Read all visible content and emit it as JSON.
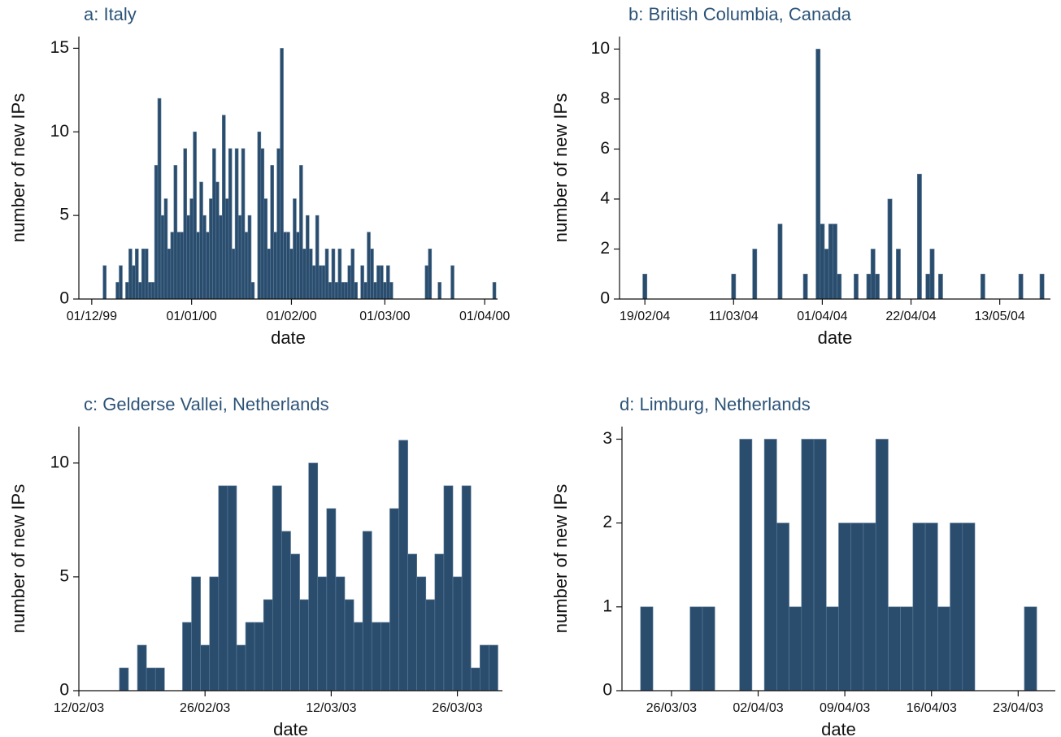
{
  "chart_data": [
    {
      "type": "bar",
      "title": "a: Italy",
      "xlabel": "date",
      "ylabel": "number of new IPs",
      "color": "#2a4d6e",
      "x": [
        "05/12/99",
        "09/12/99",
        "10/12/99",
        "12/12/99",
        "13/12/99",
        "14/12/99",
        "15/12/99",
        "16/12/99",
        "17/12/99",
        "18/12/99",
        "19/12/99",
        "20/12/99",
        "21/12/99",
        "22/12/99",
        "23/12/99",
        "24/12/99",
        "25/12/99",
        "26/12/99",
        "27/12/99",
        "28/12/99",
        "29/12/99",
        "30/12/99",
        "31/12/99",
        "01/01/00",
        "02/01/00",
        "03/01/00",
        "04/01/00",
        "05/01/00",
        "06/01/00",
        "07/01/00",
        "08/01/00",
        "09/01/00",
        "10/01/00",
        "11/01/00",
        "12/01/00",
        "13/01/00",
        "14/01/00",
        "15/01/00",
        "16/01/00",
        "17/01/00",
        "18/01/00",
        "19/01/00",
        "20/01/00",
        "22/01/00",
        "23/01/00",
        "24/01/00",
        "25/01/00",
        "26/01/00",
        "27/01/00",
        "28/01/00",
        "29/01/00",
        "30/01/00",
        "31/01/00",
        "01/02/00",
        "02/02/00",
        "03/02/00",
        "04/02/00",
        "05/02/00",
        "06/02/00",
        "07/02/00",
        "08/02/00",
        "09/02/00",
        "10/02/00",
        "11/02/00",
        "12/02/00",
        "13/02/00",
        "14/02/00",
        "15/02/00",
        "16/02/00",
        "17/02/00",
        "18/02/00",
        "19/02/00",
        "20/02/00",
        "21/02/00",
        "23/02/00",
        "24/02/00",
        "25/02/00",
        "26/02/00",
        "27/02/00",
        "28/02/00",
        "29/02/00",
        "01/03/00",
        "02/03/00",
        "03/03/00",
        "14/03/00",
        "15/03/00",
        "18/03/00",
        "22/03/00",
        "04/04/00"
      ],
      "values": [
        2,
        1,
        2,
        1,
        3,
        2,
        3,
        1,
        3,
        3,
        1,
        1,
        8,
        12,
        5,
        6,
        3,
        4,
        8,
        4,
        4,
        9,
        5,
        6,
        10,
        4,
        7,
        5,
        4,
        6,
        9,
        7,
        5,
        11,
        6,
        9,
        3,
        9,
        5,
        9,
        4,
        5,
        1,
        10,
        9,
        6,
        3,
        8,
        4,
        9,
        15,
        4,
        4,
        3,
        6,
        4,
        8,
        3,
        5,
        3,
        2,
        5,
        2,
        2,
        3,
        1,
        3,
        1,
        3,
        1,
        1,
        2,
        3,
        1,
        2,
        1,
        4,
        3,
        1,
        2,
        2,
        1,
        2,
        1,
        2,
        3,
        1,
        2,
        1
      ],
      "xlim": [
        "27/11/99",
        "05/04/00"
      ],
      "xticks": [
        "01/12/99",
        "01/01/00",
        "01/02/00",
        "01/03/00",
        "01/04/00"
      ],
      "ylim": [
        0,
        15.7
      ],
      "yticks": [
        0,
        5,
        10,
        15
      ]
    },
    {
      "type": "bar",
      "title": "b: British Columbia, Canada",
      "xlabel": "date",
      "ylabel": "number of new IPs",
      "color": "#2a4d6e",
      "x": [
        "19/02/04",
        "11/03/04",
        "16/03/04",
        "22/03/04",
        "28/03/04",
        "31/03/04",
        "01/04/04",
        "02/04/04",
        "03/04/04",
        "04/04/04",
        "05/04/04",
        "09/04/04",
        "12/04/04",
        "13/04/04",
        "14/04/04",
        "17/04/04",
        "19/04/04",
        "24/04/04",
        "26/04/04",
        "27/04/04",
        "29/04/04",
        "09/05/04",
        "18/05/04",
        "23/05/04"
      ],
      "values": [
        1,
        1,
        2,
        3,
        1,
        10,
        3,
        2,
        3,
        3,
        1,
        1,
        1,
        2,
        1,
        4,
        2,
        5,
        1,
        2,
        1,
        1,
        1,
        1
      ],
      "xlim": [
        "13/02/04",
        "25/05/04"
      ],
      "xticks": [
        "19/02/04",
        "11/03/04",
        "01/04/04",
        "22/04/04",
        "13/05/04"
      ],
      "ylim": [
        0,
        10.5
      ],
      "yticks": [
        0,
        2,
        4,
        6,
        8,
        10
      ]
    },
    {
      "type": "bar",
      "title": "c: Gelderse Vallei, Netherlands",
      "xlabel": "date",
      "ylabel": "number of new IPs",
      "color": "#2a4d6e",
      "x": [
        "17/02/03",
        "19/02/03",
        "20/02/03",
        "21/02/03",
        "24/02/03",
        "25/02/03",
        "26/02/03",
        "27/02/03",
        "28/02/03",
        "01/03/03",
        "02/03/03",
        "03/03/03",
        "04/03/03",
        "05/03/03",
        "06/03/03",
        "07/03/03",
        "08/03/03",
        "09/03/03",
        "10/03/03",
        "11/03/03",
        "12/03/03",
        "13/03/03",
        "14/03/03",
        "15/03/03",
        "16/03/03",
        "17/03/03",
        "18/03/03",
        "19/03/03",
        "20/03/03",
        "21/03/03",
        "22/03/03",
        "23/03/03",
        "24/03/03",
        "25/03/03",
        "26/03/03",
        "27/03/03",
        "28/03/03",
        "29/03/03",
        "30/03/03"
      ],
      "values": [
        1,
        2,
        1,
        1,
        3,
        5,
        2,
        5,
        9,
        9,
        2,
        3,
        3,
        4,
        9,
        7,
        6,
        4,
        10,
        5,
        8,
        5,
        4,
        3,
        7,
        3,
        3,
        8,
        11,
        6,
        5,
        4,
        6,
        9,
        5,
        9,
        1,
        2,
        2
      ],
      "xlim": [
        "12/02/03",
        "31/03/03"
      ],
      "xticks": [
        "12/02/03",
        "26/02/03",
        "12/03/03",
        "26/03/03"
      ],
      "ylim": [
        0,
        11.6
      ],
      "yticks": [
        0,
        5,
        10
      ]
    },
    {
      "type": "bar",
      "title": "d: Limburg, Netherlands",
      "xlabel": "date",
      "ylabel": "number of new IPs",
      "color": "#2a4d6e",
      "x": [
        "24/03/03",
        "28/03/03",
        "29/03/03",
        "01/04/03",
        "03/04/03",
        "04/04/03",
        "05/04/03",
        "06/04/03",
        "07/04/03",
        "08/04/03",
        "09/04/03",
        "10/04/03",
        "11/04/03",
        "12/04/03",
        "13/04/03",
        "14/04/03",
        "15/04/03",
        "16/04/03",
        "17/04/03",
        "18/04/03",
        "19/04/03",
        "24/04/03"
      ],
      "values": [
        1,
        1,
        1,
        3,
        3,
        2,
        1,
        3,
        3,
        1,
        2,
        2,
        2,
        3,
        1,
        1,
        2,
        2,
        1,
        2,
        2,
        1
      ],
      "xlim": [
        "22/03/03",
        "26/04/03"
      ],
      "xticks": [
        "26/03/03",
        "02/04/03",
        "09/04/03",
        "16/04/03",
        "23/04/03"
      ],
      "ylim": [
        0,
        3.15
      ],
      "yticks": [
        0,
        1,
        2,
        3
      ]
    }
  ]
}
